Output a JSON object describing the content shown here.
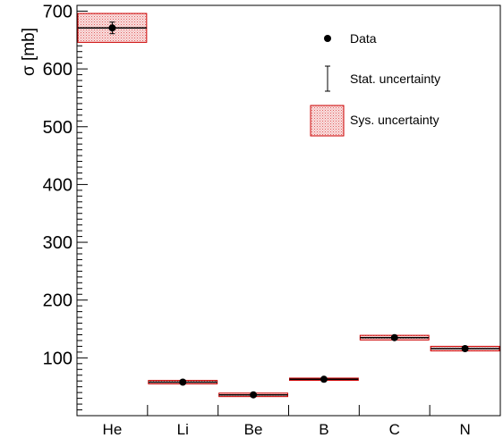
{
  "chart_data": {
    "type": "scatter",
    "ylabel": "σ [mb]",
    "xlabel": "",
    "categories": [
      "He",
      "Li",
      "Be",
      "B",
      "C",
      "N"
    ],
    "ylim": [
      0,
      710
    ],
    "yticks": [
      100,
      200,
      300,
      400,
      500,
      600,
      700
    ],
    "grid": false,
    "legend_position": "top-right",
    "series": [
      {
        "name": "Data",
        "values": [
          671,
          58,
          36,
          63,
          135,
          116
        ],
        "stat_uncertainty": [
          10,
          2,
          1,
          2,
          3,
          3
        ],
        "sys_uncertainty": [
          25,
          3,
          3,
          2,
          4,
          4
        ]
      }
    ],
    "legend": {
      "data_label": "Data",
      "stat_label": "Stat. uncertainty",
      "sys_label": "Sys. uncertainty"
    },
    "colors": {
      "marker": "#000000",
      "sys_fill": "#f6c8c8",
      "sys_edge": "#cc0000",
      "axis": "#000000"
    }
  }
}
